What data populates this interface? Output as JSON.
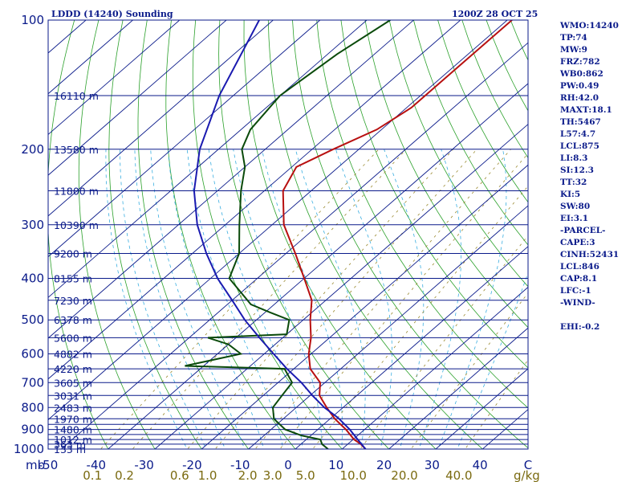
{
  "header": {
    "title": "LDDD (14240) Sounding",
    "valid_time": "1200Z 28 OCT 25"
  },
  "indices": [
    "WMO:14240",
    "TP:74",
    "MW:9",
    "FRZ:782",
    "WB0:862",
    "PW:0.49",
    "RH:42.0",
    "MAXT:18.1",
    "TH:5467",
    "L57:4.7",
    "LCL:875",
    "LI:8.3",
    "SI:12.3",
    "TT:32",
    "KI:5",
    "SW:80",
    "EI:3.1",
    "-PARCEL-",
    "CAPE:3",
    "CINH:52431",
    "LCL:846",
    "CAP:8.1",
    "LFC:-1",
    "-WIND-",
    "",
    "EHI:-0.2"
  ],
  "chart_data": {
    "type": "skew-t",
    "title": "LDDD (14240) Sounding",
    "pressure_unit": "mb",
    "mixing_ratio_unit": "g/kg",
    "pressure_range": [
      1000,
      100
    ],
    "temperature_range": [
      -50,
      50
    ],
    "pressure_labels": [
      1000,
      900,
      800,
      700,
      600,
      500,
      400,
      300,
      200,
      100
    ],
    "isobars": [
      1000,
      974,
      950,
      925,
      900,
      876,
      850,
      800,
      750,
      700,
      650,
      600,
      550,
      500,
      450,
      400,
      350,
      300,
      250,
      200,
      150,
      100
    ],
    "temperature_ticks": [
      -50,
      -40,
      -30,
      -20,
      -10,
      0,
      10,
      20,
      30,
      40
    ],
    "temperature_tick_labels": [
      "-50",
      "-40",
      "-30",
      "-20",
      "-10",
      "0",
      "10",
      "20",
      "30",
      "40",
      "C"
    ],
    "mixing_ratio_labels": [
      "0.1",
      "0.2",
      "0.6",
      "1.0",
      "2.0",
      "3.0",
      "5.0",
      "10.0",
      "20.0",
      "40.0"
    ],
    "mixing_ratio_values": [
      0.1,
      0.2,
      0.6,
      1.0,
      2.0,
      3.0,
      5.0,
      10.0,
      20.0,
      40.0
    ],
    "height_labels": [
      {
        "p": 1000,
        "label": "133 m"
      },
      {
        "p": 974,
        "label": "363 m"
      },
      {
        "p": 950,
        "label": "1012 m"
      },
      {
        "p": 900,
        "label": "1480 m"
      },
      {
        "p": 850,
        "label": "1970 m"
      },
      {
        "p": 800,
        "label": "2483 m"
      },
      {
        "p": 750,
        "label": "3031 m"
      },
      {
        "p": 700,
        "label": "3605 m"
      },
      {
        "p": 650,
        "label": "4220 m"
      },
      {
        "p": 600,
        "label": "4882 m"
      },
      {
        "p": 550,
        "label": "5600 m"
      },
      {
        "p": 500,
        "label": "6378 m"
      },
      {
        "p": 450,
        "label": "7230 m"
      },
      {
        "p": 400,
        "label": "8155 m"
      },
      {
        "p": 350,
        "label": "9200 m"
      },
      {
        "p": 300,
        "label": "10390 m"
      },
      {
        "p": 250,
        "label": "11800 m"
      },
      {
        "p": 200,
        "label": "13580 m"
      },
      {
        "p": 150,
        "label": "16110 m"
      }
    ],
    "series": [
      {
        "name": "temperature",
        "color": "#b81010",
        "points": [
          [
            1000,
            15.0
          ],
          [
            974,
            12.8
          ],
          [
            950,
            10.2
          ],
          [
            900,
            6.0
          ],
          [
            850,
            1.0
          ],
          [
            800,
            -3.5
          ],
          [
            750,
            -8.0
          ],
          [
            700,
            -11.0
          ],
          [
            650,
            -16.5
          ],
          [
            600,
            -20.5
          ],
          [
            550,
            -24.0
          ],
          [
            500,
            -28.5
          ],
          [
            450,
            -33.0
          ],
          [
            400,
            -40.0
          ],
          [
            350,
            -48.0
          ],
          [
            300,
            -57.5
          ],
          [
            250,
            -66.0
          ],
          [
            220,
            -69.0
          ],
          [
            200,
            -65.5
          ],
          [
            180,
            -61.0
          ],
          [
            160,
            -59.0
          ],
          [
            140,
            -59.0
          ],
          [
            120,
            -59.0
          ],
          [
            100,
            -59.0
          ]
        ]
      },
      {
        "name": "dewpoint",
        "color": "#0a4a0a",
        "points": [
          [
            1000,
            7.0
          ],
          [
            974,
            4.5
          ],
          [
            950,
            3.0
          ],
          [
            930,
            -2.0
          ],
          [
            900,
            -7.0
          ],
          [
            850,
            -12.0
          ],
          [
            800,
            -15.0
          ],
          [
            750,
            -16.0
          ],
          [
            700,
            -17.0
          ],
          [
            650,
            -22.0
          ],
          [
            640,
            -44.0
          ],
          [
            600,
            -35.0
          ],
          [
            570,
            -40.0
          ],
          [
            550,
            -46.0
          ],
          [
            540,
            -30.0
          ],
          [
            500,
            -33.0
          ],
          [
            480,
            -39.0
          ],
          [
            460,
            -45.0
          ],
          [
            400,
            -56.0
          ],
          [
            350,
            -60.0
          ],
          [
            300,
            -67.0
          ],
          [
            250,
            -75.0
          ],
          [
            220,
            -80.0
          ],
          [
            200,
            -85.0
          ],
          [
            180,
            -88.0
          ],
          [
            150,
            -90.0
          ],
          [
            120,
            -88.0
          ],
          [
            100,
            -85.0
          ]
        ]
      },
      {
        "name": "parcel",
        "color": "#1a1ab0",
        "points": [
          [
            1000,
            15.0
          ],
          [
            950,
            11.0
          ],
          [
            900,
            6.8
          ],
          [
            846,
            1.5
          ],
          [
            800,
            -4.0
          ],
          [
            750,
            -9.5
          ],
          [
            700,
            -15.0
          ],
          [
            650,
            -21.5
          ],
          [
            600,
            -28.0
          ],
          [
            550,
            -35.0
          ],
          [
            500,
            -42.5
          ],
          [
            450,
            -50.0
          ],
          [
            400,
            -58.5
          ],
          [
            350,
            -67.0
          ],
          [
            300,
            -76.0
          ],
          [
            250,
            -85.0
          ],
          [
            200,
            -94.0
          ],
          [
            150,
            -103.0
          ],
          [
            100,
            -113.0
          ]
        ]
      }
    ]
  }
}
